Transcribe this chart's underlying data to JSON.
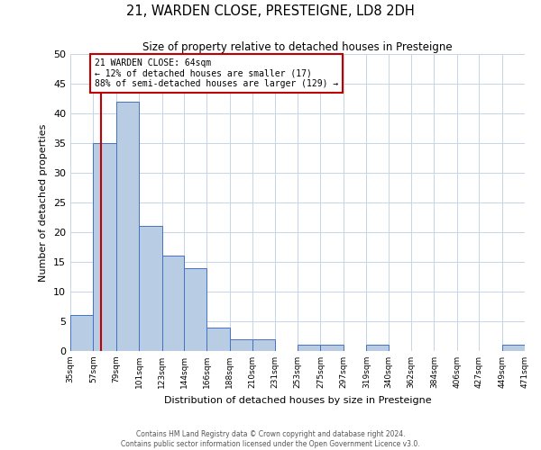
{
  "title": "21, WARDEN CLOSE, PRESTEIGNE, LD8 2DH",
  "subtitle": "Size of property relative to detached houses in Presteigne",
  "xlabel": "Distribution of detached houses by size in Presteigne",
  "ylabel": "Number of detached properties",
  "bin_labels": [
    "35sqm",
    "57sqm",
    "79sqm",
    "101sqm",
    "123sqm",
    "144sqm",
    "166sqm",
    "188sqm",
    "210sqm",
    "231sqm",
    "253sqm",
    "275sqm",
    "297sqm",
    "319sqm",
    "340sqm",
    "362sqm",
    "384sqm",
    "406sqm",
    "427sqm",
    "449sqm",
    "471sqm"
  ],
  "bin_edges": [
    35,
    57,
    79,
    101,
    123,
    144,
    166,
    188,
    210,
    231,
    253,
    275,
    297,
    319,
    340,
    362,
    384,
    406,
    427,
    449,
    471
  ],
  "bar_heights": [
    6,
    35,
    42,
    21,
    16,
    14,
    4,
    2,
    2,
    0,
    1,
    1,
    0,
    1,
    0,
    0,
    0,
    0,
    0,
    1
  ],
  "bar_color": "#b8cce4",
  "bar_edge_color": "#4472c4",
  "grid_color": "#c5d5e8",
  "property_line_x": 64,
  "property_line_color": "#c00000",
  "annotation_title": "21 WARDEN CLOSE: 64sqm",
  "annotation_line1": "← 12% of detached houses are smaller (17)",
  "annotation_line2": "88% of semi-detached houses are larger (129) →",
  "annotation_box_color": "#c00000",
  "ylim": [
    0,
    50
  ],
  "yticks": [
    0,
    5,
    10,
    15,
    20,
    25,
    30,
    35,
    40,
    45,
    50
  ],
  "footer_line1": "Contains HM Land Registry data © Crown copyright and database right 2024.",
  "footer_line2": "Contains public sector information licensed under the Open Government Licence v3.0."
}
